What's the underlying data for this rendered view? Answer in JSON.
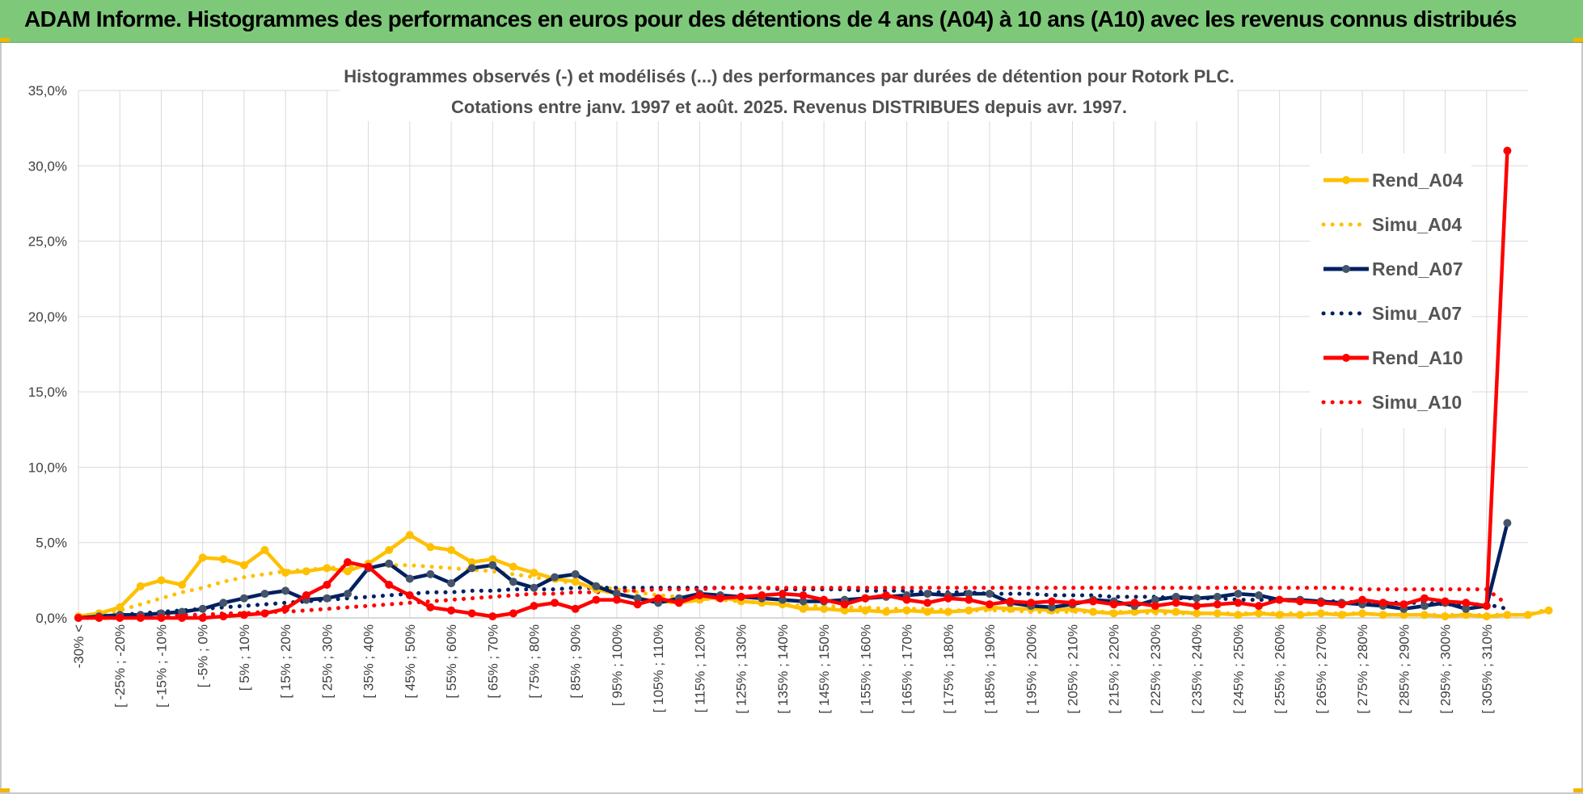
{
  "banner": {
    "title": "ADAM Informe. Histogrammes des performances en euros pour des détentions de 4 ans (A04) à 10 ans (A10) avec les revenus connus distribués"
  },
  "colors": {
    "banner": "#7ec87a",
    "A04": "#ffc000",
    "A07": "#002060",
    "A10": "#ff0000",
    "grid": "#d9d9d9"
  },
  "chart_data": {
    "type": "line",
    "title_line1": "Histogrammes observés (-) et modélisés (...) des performances par durées de détention pour Rotork PLC.",
    "title_line2": "Cotations entre janv. 1997 et août. 2025. Revenus DISTRIBUES depuis avr. 1997.",
    "ylim": [
      0,
      0.35
    ],
    "yticks": [
      "0,0%",
      "5,0%",
      "10,0%",
      "15,0%",
      "20,0%",
      "25,0%",
      "30,0%",
      "35,0%"
    ],
    "grid": true,
    "legend_position": "right",
    "x_labels_shown": [
      "-30% <",
      "[ -25% ; -20%",
      "[ -15% ; -10%",
      "[ -5% ; 0%",
      "[ 5% ; 10%",
      "[ 15% ; 20%",
      "[ 25% ; 30%",
      "[ 35% ; 40%",
      "[ 45% ; 50%",
      "[ 55% ; 60%",
      "[ 65% ; 70%",
      "[ 75% ; 80%",
      "[ 85% ; 90%",
      "[ 95% ; 100%",
      "[ 105% ; 110%",
      "[ 115% ; 120%",
      "[ 125% ; 130%",
      "[ 135% ; 140%",
      "[ 145% ; 150%",
      "[ 155% ; 160%",
      "[ 165% ; 170%",
      "[ 175% ; 180%",
      "[ 185% ; 190%",
      "[ 195% ; 200%",
      "[ 205% ; 210%",
      "[ 215% ; 220%",
      "[ 225% ; 230%",
      "[ 235% ; 240%",
      "[ 245% ; 250%",
      "[ 255% ; 260%",
      "[ 265% ; 270%",
      "[ 275% ; 280%",
      "[ 285% ; 290%",
      "[ 295% ; 300%",
      "[ 305% ; 310%"
    ],
    "series": [
      {
        "name": "Rend_A04",
        "style": "solid",
        "color": "#ffc000",
        "values": [
          0.001,
          0.003,
          0.007,
          0.021,
          0.025,
          0.022,
          0.04,
          0.039,
          0.035,
          0.045,
          0.03,
          0.031,
          0.033,
          0.031,
          0.036,
          0.045,
          0.055,
          0.047,
          0.045,
          0.037,
          0.039,
          0.034,
          0.03,
          0.026,
          0.024,
          0.019,
          0.016,
          0.013,
          0.011,
          0.01,
          0.012,
          0.014,
          0.011,
          0.01,
          0.009,
          0.006,
          0.006,
          0.005,
          0.005,
          0.004,
          0.005,
          0.004,
          0.004,
          0.005,
          0.007,
          0.006,
          0.006,
          0.005,
          0.006,
          0.004,
          0.003,
          0.004,
          0.005,
          0.004,
          0.003,
          0.003,
          0.002,
          0.003,
          0.002,
          0.002,
          0.003,
          0.002,
          0.003,
          0.002,
          0.002,
          0.002,
          0.001,
          0.002,
          0.001,
          0.002,
          0.002,
          0.005
        ]
      },
      {
        "name": "Simu_A04",
        "style": "dotted",
        "color": "#ffc000",
        "values": [
          0.001,
          0.003,
          0.005,
          0.009,
          0.013,
          0.017,
          0.02,
          0.024,
          0.027,
          0.029,
          0.031,
          0.032,
          0.033,
          0.034,
          0.034,
          0.035,
          0.035,
          0.034,
          0.033,
          0.032,
          0.031,
          0.029,
          0.027,
          0.025,
          0.023,
          0.021,
          0.019,
          0.017,
          0.015,
          0.014,
          0.013,
          0.012,
          0.011,
          0.01,
          0.009,
          0.008,
          0.008,
          0.007,
          0.007,
          0.006,
          0.006,
          0.006,
          0.005,
          0.005,
          0.005,
          0.005,
          0.004,
          0.004,
          0.004,
          0.004,
          0.004,
          0.004,
          0.003,
          0.003,
          0.003,
          0.003,
          0.003,
          0.003,
          0.003,
          0.003,
          0.003,
          0.003,
          0.003,
          0.002,
          0.002,
          0.002,
          0.002,
          0.002,
          0.002,
          0.002,
          0.002,
          0.006
        ]
      },
      {
        "name": "Rend_A07",
        "style": "solid",
        "color": "#002060",
        "values": [
          0.0,
          0.001,
          0.002,
          0.002,
          0.003,
          0.004,
          0.006,
          0.01,
          0.013,
          0.016,
          0.018,
          0.012,
          0.013,
          0.016,
          0.033,
          0.036,
          0.026,
          0.029,
          0.023,
          0.033,
          0.035,
          0.024,
          0.02,
          0.027,
          0.029,
          0.021,
          0.016,
          0.013,
          0.01,
          0.013,
          0.016,
          0.015,
          0.014,
          0.013,
          0.012,
          0.011,
          0.011,
          0.012,
          0.013,
          0.014,
          0.015,
          0.016,
          0.015,
          0.016,
          0.016,
          0.01,
          0.008,
          0.007,
          0.009,
          0.012,
          0.011,
          0.008,
          0.012,
          0.014,
          0.013,
          0.014,
          0.016,
          0.015,
          0.012,
          0.012,
          0.011,
          0.01,
          0.009,
          0.008,
          0.006,
          0.008,
          0.01,
          0.006,
          0.008,
          0.063
        ]
      },
      {
        "name": "Simu_A07",
        "style": "dotted",
        "color": "#002060",
        "values": [
          0.0,
          0.001,
          0.002,
          0.003,
          0.004,
          0.005,
          0.006,
          0.007,
          0.008,
          0.009,
          0.01,
          0.011,
          0.012,
          0.013,
          0.014,
          0.015,
          0.016,
          0.017,
          0.017,
          0.018,
          0.018,
          0.019,
          0.019,
          0.019,
          0.02,
          0.02,
          0.02,
          0.02,
          0.02,
          0.02,
          0.02,
          0.02,
          0.02,
          0.02,
          0.019,
          0.019,
          0.019,
          0.019,
          0.018,
          0.018,
          0.018,
          0.017,
          0.017,
          0.017,
          0.016,
          0.016,
          0.016,
          0.015,
          0.015,
          0.015,
          0.014,
          0.014,
          0.014,
          0.013,
          0.013,
          0.013,
          0.012,
          0.012,
          0.012,
          0.011,
          0.011,
          0.011,
          0.01,
          0.01,
          0.01,
          0.01,
          0.009,
          0.009,
          0.009,
          0.006
        ]
      },
      {
        "name": "Rend_A10",
        "style": "solid",
        "color": "#ff0000",
        "values": [
          0.0,
          0.0,
          0.0,
          0.0,
          0.0,
          0.0,
          0.0,
          0.001,
          0.002,
          0.003,
          0.006,
          0.015,
          0.022,
          0.037,
          0.034,
          0.022,
          0.015,
          0.007,
          0.005,
          0.003,
          0.001,
          0.003,
          0.008,
          0.01,
          0.006,
          0.012,
          0.012,
          0.009,
          0.013,
          0.01,
          0.015,
          0.013,
          0.014,
          0.015,
          0.016,
          0.015,
          0.012,
          0.009,
          0.013,
          0.015,
          0.012,
          0.01,
          0.013,
          0.012,
          0.009,
          0.011,
          0.01,
          0.011,
          0.01,
          0.011,
          0.009,
          0.01,
          0.008,
          0.01,
          0.008,
          0.009,
          0.01,
          0.008,
          0.012,
          0.011,
          0.01,
          0.009,
          0.012,
          0.01,
          0.009,
          0.013,
          0.011,
          0.01,
          0.008,
          0.31
        ]
      },
      {
        "name": "Simu_A10",
        "style": "dotted",
        "color": "#ff0000",
        "values": [
          0.0,
          0.0,
          0.0,
          0.001,
          0.001,
          0.002,
          0.002,
          0.003,
          0.003,
          0.004,
          0.004,
          0.005,
          0.006,
          0.007,
          0.008,
          0.009,
          0.01,
          0.011,
          0.012,
          0.013,
          0.014,
          0.015,
          0.016,
          0.016,
          0.017,
          0.017,
          0.018,
          0.018,
          0.019,
          0.019,
          0.019,
          0.02,
          0.02,
          0.02,
          0.02,
          0.02,
          0.02,
          0.02,
          0.02,
          0.02,
          0.02,
          0.02,
          0.02,
          0.02,
          0.02,
          0.02,
          0.02,
          0.02,
          0.02,
          0.02,
          0.02,
          0.02,
          0.02,
          0.02,
          0.02,
          0.02,
          0.02,
          0.02,
          0.02,
          0.02,
          0.02,
          0.02,
          0.019,
          0.019,
          0.019,
          0.019,
          0.019,
          0.019,
          0.019,
          0.009
        ]
      }
    ]
  }
}
